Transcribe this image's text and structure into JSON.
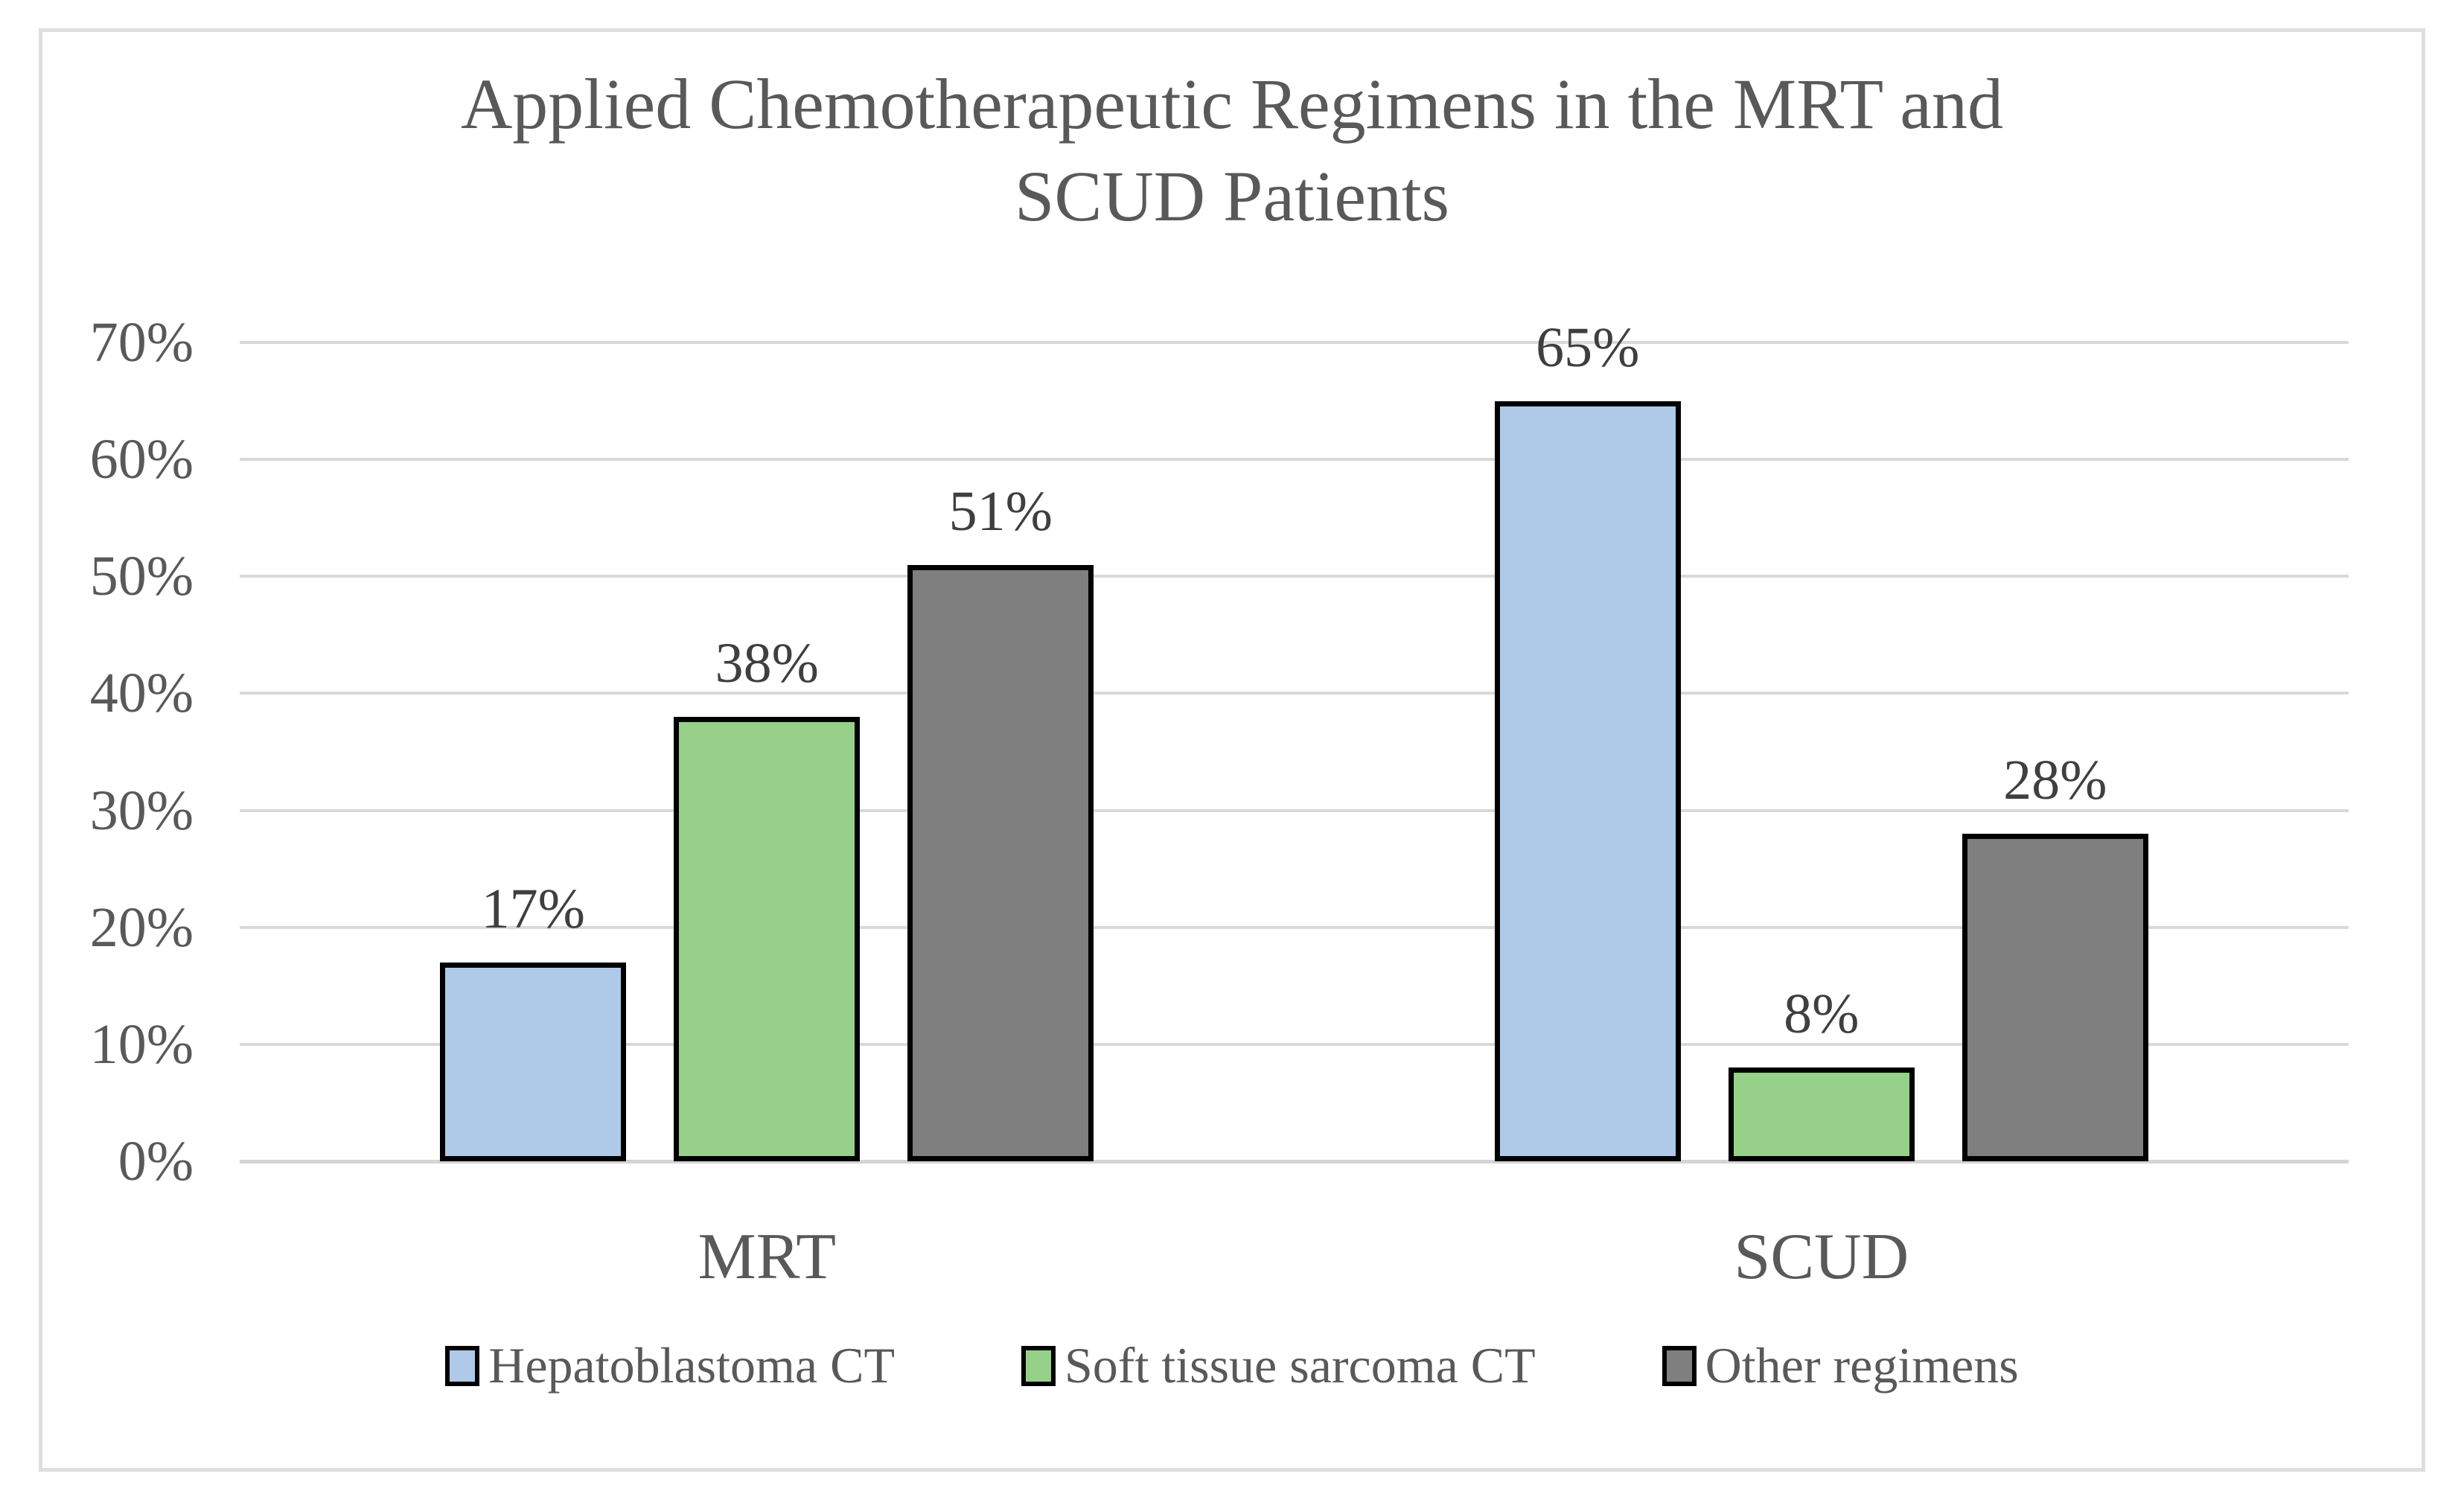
{
  "chart_data": {
    "type": "bar",
    "title": "Applied Chemotherapeutic Regimens in the MRT and SCUD Patients",
    "title_lines": [
      "Applied Chemotherapeutic Regimens in the MRT and",
      "SCUD Patients"
    ],
    "categories": [
      "MRT",
      "SCUD"
    ],
    "series": [
      {
        "name": "Hepatoblastoma CT",
        "color": "#AFC9E8",
        "values": [
          17,
          65
        ],
        "labels": [
          "17%",
          "65%"
        ]
      },
      {
        "name": "Soft tissue sarcoma CT",
        "color": "#96D089",
        "values": [
          38,
          8
        ],
        "labels": [
          "38%",
          "8%"
        ]
      },
      {
        "name": "Other regimens",
        "color": "#7F7F7F",
        "values": [
          51,
          28
        ],
        "labels": [
          "51%",
          "28%"
        ]
      }
    ],
    "y_axis": {
      "tick_labels": [
        "70%",
        "60%",
        "50%",
        "40%",
        "30%",
        "20%",
        "10%",
        "0%"
      ],
      "tick_values": [
        70,
        60,
        50,
        40,
        30,
        20,
        10,
        0
      ],
      "min": 0,
      "max": 70
    },
    "grid": true,
    "legend_position": "bottom",
    "colors": {
      "bar_outline": "#000000",
      "gridline": "#D9D9D9",
      "axis_text": "#595959",
      "title_text": "#595959",
      "data_label_text": "#3F3F3F",
      "frame_border": "#DEDEDE"
    }
  }
}
